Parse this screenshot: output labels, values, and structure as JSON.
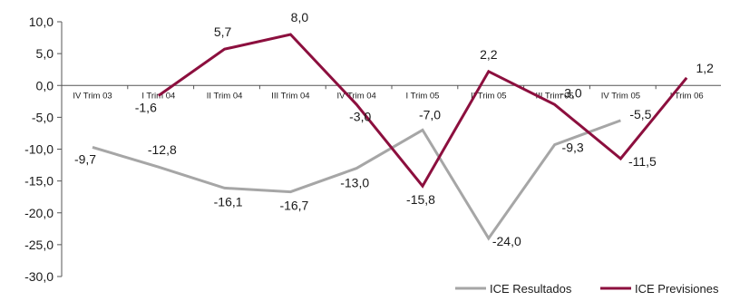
{
  "chart_data": {
    "type": "line",
    "title": "",
    "xlabel": "",
    "ylabel": "",
    "ylim": [
      -30,
      10
    ],
    "yticks": [
      10,
      5,
      0,
      -5,
      -10,
      -15,
      -20,
      -25,
      -30
    ],
    "ytick_labels": [
      "10,0",
      "5,0",
      "0,0",
      "-5,0",
      "-10,0",
      "-15,0",
      "-20,0",
      "-25,0",
      "-30,0"
    ],
    "categories": [
      "IV Trim 03",
      "I Trim 04",
      "II Trim 04",
      "III Trim 04",
      "IV Trim 04",
      "I Trim 05",
      "II Trim 05",
      "III Trim 05",
      "IV Trim 05",
      "I Trim 06"
    ],
    "grid": false,
    "legend_position": "bottom-right",
    "series": [
      {
        "name": "ICE Resultados",
        "color": "#a6a6a6",
        "values": [
          -9.7,
          -12.8,
          -16.1,
          -16.7,
          -13.0,
          -7.0,
          -24.0,
          -9.3,
          -5.5,
          null
        ],
        "labels": [
          "-9,7",
          "-12,8",
          "-16,1",
          "-16,7",
          "-13,0",
          "-7,0",
          "-24,0",
          "-9,3",
          "-5,5",
          ""
        ]
      },
      {
        "name": "ICE Previsiones",
        "color": "#8c0f3e",
        "values": [
          null,
          -1.6,
          5.7,
          8.0,
          -3.0,
          -15.8,
          2.2,
          -3.0,
          -11.5,
          1.2
        ],
        "labels": [
          "",
          "-1,6",
          "5,7",
          "8,0",
          "-3,0",
          "-15,8",
          "2,2",
          "-3,0",
          "-11,5",
          "1,2"
        ]
      }
    ]
  }
}
